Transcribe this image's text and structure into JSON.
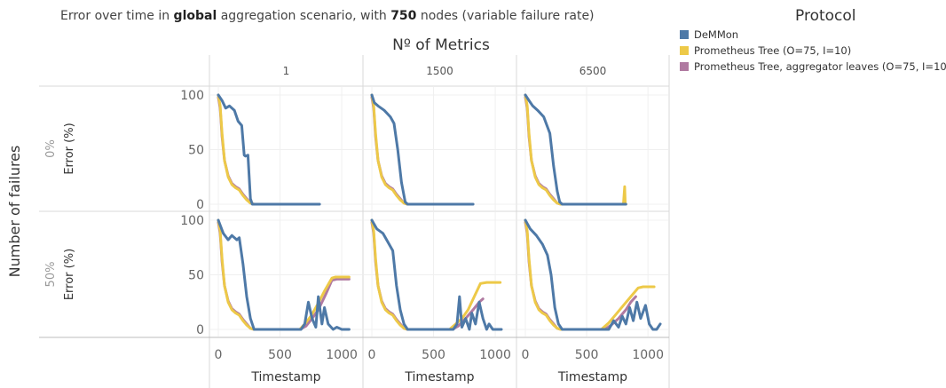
{
  "title": {
    "prefix": "Error over time in ",
    "bold1": "global",
    "middle": " aggregation scenario, with ",
    "bold2": "750",
    "suffix": " nodes (variable failure rate)"
  },
  "legend": {
    "title": "Protocol",
    "items": [
      {
        "label": "DeMMon",
        "color": "#4e79a7"
      },
      {
        "label": "Prometheus Tree (O=75, I=10)",
        "color": "#edc948"
      },
      {
        "label": "Prometheus Tree, aggregator leaves (O=75, I=10)",
        "color": "#b07aa1"
      }
    ]
  },
  "chart_data": {
    "type": "line",
    "column_header": "Nº of Metrics",
    "columns": [
      "1",
      "1500",
      "6500"
    ],
    "row_header": "Number of failures",
    "rows": [
      "0%",
      "50%"
    ],
    "xlabel": "Timestamp",
    "ylabel": "Error (%)",
    "xticks": [
      0,
      500,
      1000
    ],
    "yticks": [
      0,
      50,
      100
    ],
    "xlim": [
      -10,
      1100
    ],
    "ylim": [
      -5,
      105
    ],
    "panels": [
      {
        "row": "0%",
        "col": "1",
        "series": [
          {
            "name": "DeMMon",
            "x": [
              0,
              30,
              60,
              90,
              130,
              160,
              190,
              210,
              220,
              240,
              260,
              275,
              290,
              300,
              820
            ],
            "y": [
              100,
              95,
              88,
              90,
              86,
              76,
              72,
              45,
              44,
              45,
              5,
              0,
              0,
              0,
              0
            ]
          },
          {
            "name": "Prometheus Tree (O=75, I=10)",
            "x": [
              0,
              15,
              30,
              50,
              80,
              110,
              140,
              170,
              200,
              230,
              260,
              290,
              350
            ],
            "y": [
              100,
              90,
              65,
              40,
              25,
              18,
              15,
              13,
              8,
              4,
              1,
              0,
              0
            ]
          },
          {
            "name": "Prometheus Tree, aggregator leaves (O=75, I=10)",
            "x": [
              0,
              15,
              30,
              50,
              80,
              110,
              140,
              170,
              200,
              230,
              260,
              290,
              350
            ],
            "y": [
              98,
              88,
              62,
              40,
              26,
              19,
              16,
              14,
              9,
              5,
              1,
              0,
              0
            ]
          }
        ]
      },
      {
        "row": "0%",
        "col": "1500",
        "series": [
          {
            "name": "DeMMon",
            "x": [
              0,
              20,
              50,
              100,
              150,
              180,
              210,
              240,
              270,
              290,
              310,
              820
            ],
            "y": [
              100,
              93,
              90,
              86,
              80,
              74,
              50,
              20,
              2,
              0,
              0,
              0
            ]
          },
          {
            "name": "Prometheus Tree (O=75, I=10)",
            "x": [
              0,
              15,
              30,
              50,
              80,
              110,
              140,
              170,
              200,
              230,
              260,
              290,
              350
            ],
            "y": [
              100,
              90,
              65,
              40,
              25,
              18,
              15,
              13,
              8,
              4,
              1,
              0,
              0
            ]
          },
          {
            "name": "Prometheus Tree, aggregator leaves (O=75, I=10)",
            "x": [
              0,
              15,
              30,
              50,
              80,
              110,
              140,
              170,
              200,
              230,
              260,
              290,
              350
            ],
            "y": [
              98,
              88,
              62,
              40,
              26,
              19,
              16,
              14,
              9,
              5,
              1,
              0,
              0
            ]
          }
        ]
      },
      {
        "row": "0%",
        "col": "6500",
        "series": [
          {
            "name": "DeMMon",
            "x": [
              0,
              30,
              60,
              100,
              150,
              200,
              230,
              260,
              280,
              300,
              820
            ],
            "y": [
              100,
              95,
              90,
              86,
              80,
              65,
              35,
              12,
              2,
              0,
              0
            ]
          },
          {
            "name": "Prometheus Tree (O=75, I=10)",
            "x": [
              0,
              15,
              30,
              50,
              80,
              110,
              140,
              170,
              200,
              230,
              260,
              290,
              350,
              800,
              810,
              815,
              820
            ],
            "y": [
              100,
              90,
              65,
              40,
              25,
              18,
              15,
              13,
              8,
              4,
              1,
              0,
              0,
              0,
              16,
              0,
              0
            ]
          },
          {
            "name": "Prometheus Tree, aggregator leaves (O=75, I=10)",
            "x": [
              0,
              15,
              30,
              50,
              80,
              110,
              140,
              170,
              200,
              230,
              260,
              290,
              350
            ],
            "y": [
              98,
              88,
              62,
              40,
              26,
              19,
              16,
              14,
              9,
              5,
              1,
              0,
              0
            ]
          }
        ]
      },
      {
        "row": "50%",
        "col": "1",
        "series": [
          {
            "name": "DeMMon",
            "x": [
              0,
              40,
              80,
              110,
              150,
              170,
              200,
              230,
              260,
              290,
              320,
              670,
              700,
              730,
              760,
              790,
              810,
              840,
              860,
              890,
              930,
              960,
              1000,
              1060
            ],
            "y": [
              100,
              88,
              82,
              86,
              82,
              84,
              60,
              30,
              10,
              0,
              0,
              0,
              5,
              25,
              10,
              2,
              30,
              5,
              20,
              5,
              0,
              2,
              0,
              0
            ]
          },
          {
            "name": "Prometheus Tree (O=75, I=10)",
            "x": [
              0,
              15,
              30,
              50,
              80,
              110,
              140,
              170,
              200,
              230,
              260,
              290,
              350,
              660,
              700,
              750,
              800,
              860,
              920,
              950,
              1060
            ],
            "y": [
              100,
              90,
              65,
              40,
              25,
              18,
              15,
              13,
              8,
              4,
              1,
              0,
              0,
              0,
              5,
              12,
              22,
              35,
              47,
              48,
              48
            ]
          },
          {
            "name": "Prometheus Tree, aggregator leaves (O=75, I=10)",
            "x": [
              0,
              15,
              30,
              50,
              80,
              110,
              140,
              170,
              200,
              230,
              260,
              290,
              350,
              660,
              710,
              760,
              810,
              870,
              920,
              960,
              1060
            ],
            "y": [
              98,
              88,
              62,
              40,
              26,
              19,
              16,
              14,
              9,
              5,
              1,
              0,
              0,
              0,
              3,
              10,
              18,
              32,
              45,
              46,
              46
            ]
          }
        ]
      },
      {
        "row": "50%",
        "col": "1500",
        "series": [
          {
            "name": "DeMMon",
            "x": [
              0,
              40,
              90,
              130,
              170,
              200,
              230,
              260,
              290,
              320,
              660,
              690,
              710,
              730,
              760,
              790,
              810,
              840,
              870,
              900,
              930,
              950,
              980,
              1010,
              1050
            ],
            "y": [
              100,
              92,
              88,
              80,
              72,
              40,
              18,
              5,
              0,
              0,
              0,
              5,
              30,
              2,
              10,
              0,
              15,
              5,
              25,
              10,
              0,
              5,
              0,
              0,
              0
            ]
          },
          {
            "name": "Prometheus Tree (O=75, I=10)",
            "x": [
              0,
              15,
              30,
              50,
              80,
              110,
              140,
              170,
              200,
              230,
              260,
              290,
              350,
              630,
              680,
              730,
              780,
              830,
              880,
              930,
              1040
            ],
            "y": [
              100,
              90,
              65,
              40,
              25,
              18,
              15,
              13,
              8,
              4,
              1,
              0,
              0,
              0,
              5,
              10,
              18,
              30,
              42,
              43,
              43
            ]
          },
          {
            "name": "Prometheus Tree, aggregator leaves (O=75, I=10)",
            "x": [
              0,
              15,
              30,
              50,
              80,
              110,
              140,
              170,
              200,
              230,
              260,
              290,
              350,
              650,
              700,
              760,
              820,
              870,
              900
            ],
            "y": [
              98,
              88,
              62,
              40,
              26,
              19,
              16,
              14,
              9,
              5,
              1,
              0,
              0,
              0,
              3,
              10,
              18,
              25,
              28
            ]
          }
        ]
      },
      {
        "row": "50%",
        "col": "6500",
        "series": [
          {
            "name": "DeMMon",
            "x": [
              0,
              40,
              90,
              140,
              180,
              210,
              240,
              270,
              300,
              330,
              680,
              720,
              760,
              790,
              820,
              850,
              880,
              910,
              940,
              980,
              1010,
              1040,
              1070,
              1100
            ],
            "y": [
              100,
              92,
              86,
              78,
              68,
              50,
              20,
              5,
              0,
              0,
              0,
              8,
              2,
              12,
              5,
              20,
              8,
              25,
              10,
              22,
              5,
              0,
              0,
              5
            ]
          },
          {
            "name": "Prometheus Tree (O=75, I=10)",
            "x": [
              0,
              15,
              30,
              50,
              80,
              110,
              140,
              170,
              200,
              230,
              260,
              290,
              350,
              620,
              680,
              740,
              800,
              860,
              920,
              960,
              1050
            ],
            "y": [
              100,
              90,
              65,
              40,
              25,
              18,
              15,
              13,
              8,
              4,
              1,
              0,
              0,
              0,
              6,
              14,
              22,
              30,
              38,
              39,
              39
            ]
          },
          {
            "name": "Prometheus Tree, aggregator leaves (O=75, I=10)",
            "x": [
              0,
              15,
              30,
              50,
              80,
              110,
              140,
              170,
              200,
              230,
              260,
              290,
              350,
              650,
              700,
              760,
              820,
              860,
              900
            ],
            "y": [
              98,
              88,
              62,
              40,
              26,
              19,
              16,
              14,
              9,
              5,
              1,
              0,
              0,
              0,
              4,
              10,
              18,
              25,
              30
            ]
          }
        ]
      }
    ]
  }
}
